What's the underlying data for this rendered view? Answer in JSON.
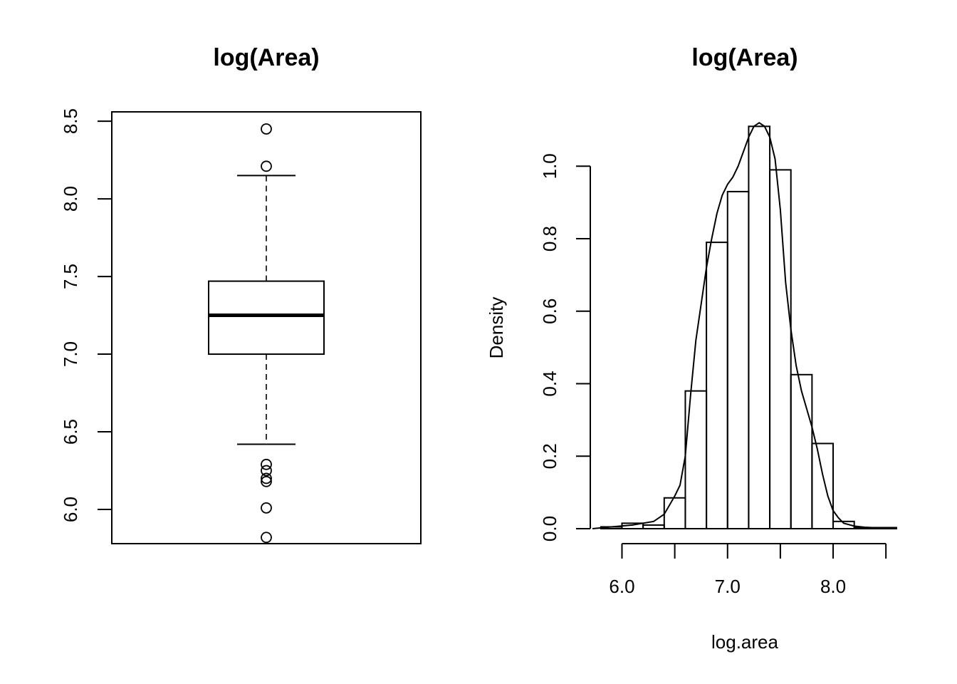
{
  "chart_data": [
    {
      "type": "boxplot",
      "title": "log(Area)",
      "xlabel": "",
      "ylabel": "",
      "ylim": [
        5.78,
        8.56
      ],
      "yticks": [
        6.0,
        6.5,
        7.0,
        7.5,
        8.0,
        8.5
      ],
      "ytick_labels": [
        "6.0",
        "6.5",
        "7.0",
        "7.5",
        "8.0",
        "8.5"
      ],
      "box": {
        "whisker_low": 6.42,
        "q1": 7.0,
        "median": 7.25,
        "q3": 7.47,
        "whisker_high": 8.15
      },
      "outliers": [
        8.45,
        8.21,
        6.29,
        6.25,
        6.2,
        6.18,
        6.01,
        5.82
      ]
    },
    {
      "type": "histogram",
      "title": "log(Area)",
      "xlabel": "log.area",
      "ylabel": "Density",
      "xlim": [
        5.7,
        8.6
      ],
      "ylim": [
        0.0,
        1.15
      ],
      "xticks": [
        6.0,
        6.5,
        7.0,
        7.5,
        8.0,
        8.5
      ],
      "xtick_labels": [
        "6.0",
        "",
        "7.0",
        "",
        "8.0",
        ""
      ],
      "yticks": [
        0.0,
        0.2,
        0.4,
        0.6,
        0.8,
        1.0
      ],
      "ytick_labels": [
        "0.0",
        "0.2",
        "0.4",
        "0.6",
        "0.8",
        "1.0"
      ],
      "bin_width": 0.2,
      "bins": [
        {
          "start": 5.8,
          "end": 6.0,
          "density": 0.005
        },
        {
          "start": 6.0,
          "end": 6.2,
          "density": 0.015
        },
        {
          "start": 6.2,
          "end": 6.4,
          "density": 0.01
        },
        {
          "start": 6.4,
          "end": 6.6,
          "density": 0.085
        },
        {
          "start": 6.6,
          "end": 6.8,
          "density": 0.38
        },
        {
          "start": 6.8,
          "end": 7.0,
          "density": 0.79
        },
        {
          "start": 7.0,
          "end": 7.2,
          "density": 0.93
        },
        {
          "start": 7.2,
          "end": 7.4,
          "density": 1.11
        },
        {
          "start": 7.4,
          "end": 7.6,
          "density": 0.99
        },
        {
          "start": 7.6,
          "end": 7.8,
          "density": 0.425
        },
        {
          "start": 7.8,
          "end": 8.0,
          "density": 0.235
        },
        {
          "start": 8.0,
          "end": 8.2,
          "density": 0.02
        },
        {
          "start": 8.2,
          "end": 8.4,
          "density": 0.003
        },
        {
          "start": 8.4,
          "end": 8.6,
          "density": 0.003
        }
      ],
      "density_curve": {
        "x": [
          5.72,
          5.9,
          6.1,
          6.3,
          6.4,
          6.5,
          6.55,
          6.6,
          6.65,
          6.7,
          6.75,
          6.8,
          6.85,
          6.9,
          6.95,
          7.0,
          7.05,
          7.1,
          7.15,
          7.2,
          7.25,
          7.3,
          7.35,
          7.4,
          7.45,
          7.5,
          7.55,
          7.6,
          7.65,
          7.7,
          7.75,
          7.8,
          7.85,
          7.9,
          7.95,
          8.0,
          8.05,
          8.1,
          8.2,
          8.3,
          8.45,
          8.58
        ],
        "y": [
          0.0,
          0.005,
          0.01,
          0.02,
          0.04,
          0.09,
          0.12,
          0.2,
          0.37,
          0.52,
          0.62,
          0.72,
          0.8,
          0.87,
          0.92,
          0.95,
          0.97,
          1.0,
          1.04,
          1.08,
          1.11,
          1.12,
          1.11,
          1.08,
          1.02,
          0.88,
          0.68,
          0.55,
          0.45,
          0.38,
          0.33,
          0.28,
          0.22,
          0.15,
          0.09,
          0.05,
          0.03,
          0.015,
          0.007,
          0.004,
          0.002,
          0.0
        ]
      }
    }
  ]
}
